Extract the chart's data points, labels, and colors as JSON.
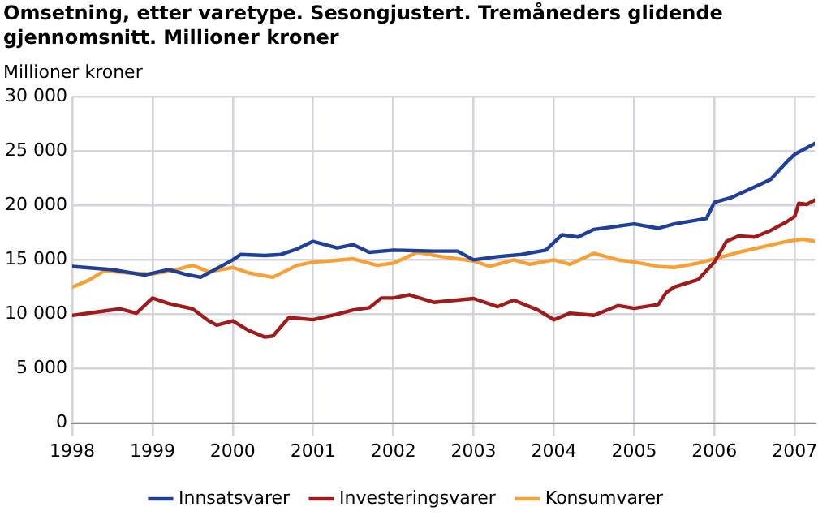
{
  "chart_data": {
    "type": "line",
    "title": "Omsetning, etter varetype. Sesongjustert. Tremåneders glidende gjennomsnitt. Millioner kroner",
    "ylabel": "Millioner kroner",
    "xlim": [
      1998,
      2007.25
    ],
    "xticks": [
      1998,
      1999,
      2000,
      2001,
      2002,
      2003,
      2004,
      2005,
      2006,
      2007
    ],
    "ylim": [
      0,
      30000
    ],
    "yticks": [
      0,
      {
        "value": 5000,
        "label": "5 000"
      },
      {
        "value": 10000,
        "label": "10 000"
      },
      {
        "value": 15000,
        "label": "15 000"
      },
      {
        "value": 20000,
        "label": "20 000"
      },
      {
        "value": 25000,
        "label": "25 000"
      },
      {
        "value": 30000,
        "label": "30 000"
      }
    ],
    "grid": true,
    "legend": "bottom",
    "marker": "none",
    "line_style": "solid",
    "series": [
      {
        "name": "Innsatsvarer",
        "color": "#1f3f99",
        "x": [
          1998.0,
          1998.5,
          1998.9,
          1999.2,
          1999.4,
          1999.6,
          2000.0,
          2000.1,
          2000.4,
          2000.6,
          2000.8,
          2001.0,
          2001.3,
          2001.5,
          2001.7,
          2002.0,
          2002.5,
          2002.8,
          2003.0,
          2003.3,
          2003.6,
          2003.9,
          2004.1,
          2004.3,
          2004.5,
          2004.8,
          2005.0,
          2005.3,
          2005.5,
          2005.9,
          2006.0,
          2006.2,
          2006.5,
          2006.7,
          2006.9,
          2007.0,
          2007.25
        ],
        "values": [
          14400,
          14100,
          13600,
          14100,
          13700,
          13400,
          15000,
          15500,
          15400,
          15500,
          16000,
          16700,
          16100,
          16400,
          15700,
          15900,
          15800,
          15800,
          15000,
          15300,
          15500,
          15900,
          17300,
          17100,
          17800,
          18100,
          18300,
          17900,
          18300,
          18800,
          20300,
          20700,
          21700,
          22400,
          24000,
          24700,
          25700
        ]
      },
      {
        "name": "Investeringsvarer",
        "color": "#a01c1c",
        "x": [
          1998.0,
          1998.3,
          1998.6,
          1998.8,
          1999.0,
          1999.2,
          1999.5,
          1999.7,
          1999.8,
          2000.0,
          2000.2,
          2000.4,
          2000.5,
          2000.7,
          2001.0,
          2001.3,
          2001.5,
          2001.7,
          2001.85,
          2002.0,
          2002.2,
          2002.5,
          2003.0,
          2003.3,
          2003.5,
          2003.8,
          2004.0,
          2004.2,
          2004.5,
          2004.8,
          2005.0,
          2005.3,
          2005.4,
          2005.5,
          2005.8,
          2006.0,
          2006.15,
          2006.3,
          2006.5,
          2006.7,
          2006.9,
          2007.0,
          2007.05,
          2007.15,
          2007.25
        ],
        "values": [
          9900,
          10200,
          10500,
          10100,
          11500,
          11000,
          10500,
          9400,
          9000,
          9400,
          8500,
          7900,
          8000,
          9700,
          9500,
          10000,
          10400,
          10600,
          11500,
          11500,
          11800,
          11100,
          11450,
          10700,
          11300,
          10400,
          9500,
          10100,
          9900,
          10800,
          10550,
          10900,
          12000,
          12500,
          13200,
          14800,
          16700,
          17200,
          17100,
          17700,
          18500,
          19000,
          20200,
          20100,
          20500
        ]
      },
      {
        "name": "Konsumvarer",
        "color": "#f7a035",
        "x": [
          1998.0,
          1998.2,
          1998.4,
          1998.7,
          1999.0,
          1999.3,
          1999.5,
          1999.7,
          2000.0,
          2000.2,
          2000.5,
          2000.8,
          2001.0,
          2001.2,
          2001.5,
          2001.8,
          2002.0,
          2002.3,
          2002.6,
          2003.0,
          2003.2,
          2003.5,
          2003.7,
          2004.0,
          2004.2,
          2004.5,
          2004.8,
          2005.0,
          2005.3,
          2005.5,
          2005.8,
          2006.0,
          2006.3,
          2006.6,
          2006.9,
          2007.1,
          2007.25
        ],
        "values": [
          12500,
          13100,
          14000,
          13800,
          13700,
          14100,
          14500,
          13900,
          14300,
          13800,
          13400,
          14500,
          14800,
          14900,
          15100,
          14500,
          14700,
          15700,
          15300,
          14900,
          14400,
          15000,
          14600,
          15000,
          14600,
          15600,
          15000,
          14800,
          14400,
          14300,
          14700,
          15100,
          15700,
          16200,
          16700,
          16900,
          16700
        ]
      }
    ]
  }
}
